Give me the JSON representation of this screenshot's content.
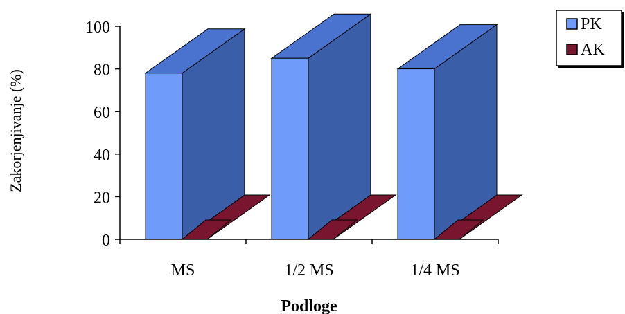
{
  "chart_data": {
    "type": "bar",
    "style": "3d-column",
    "categories": [
      "MS",
      "1/2 MS",
      "1/4 MS"
    ],
    "series": [
      {
        "name": "PK",
        "values": [
          78,
          85,
          80
        ],
        "color": "#6f9bfb",
        "top_color": "#4a73d0",
        "side_color": "#3b5ea8"
      },
      {
        "name": "AK",
        "values": [
          0,
          0,
          0
        ],
        "color": "#7a1530",
        "top_color": "#7a1530",
        "side_color": "#5a0f22"
      }
    ],
    "title": "",
    "xlabel": "Podloge",
    "ylabel": "Zakorjenjivanje (%)",
    "ylim": [
      0,
      100
    ],
    "yticks": [
      "0",
      "20",
      "40",
      "60",
      "80",
      "100"
    ],
    "grid": false,
    "legend": "top-right"
  }
}
